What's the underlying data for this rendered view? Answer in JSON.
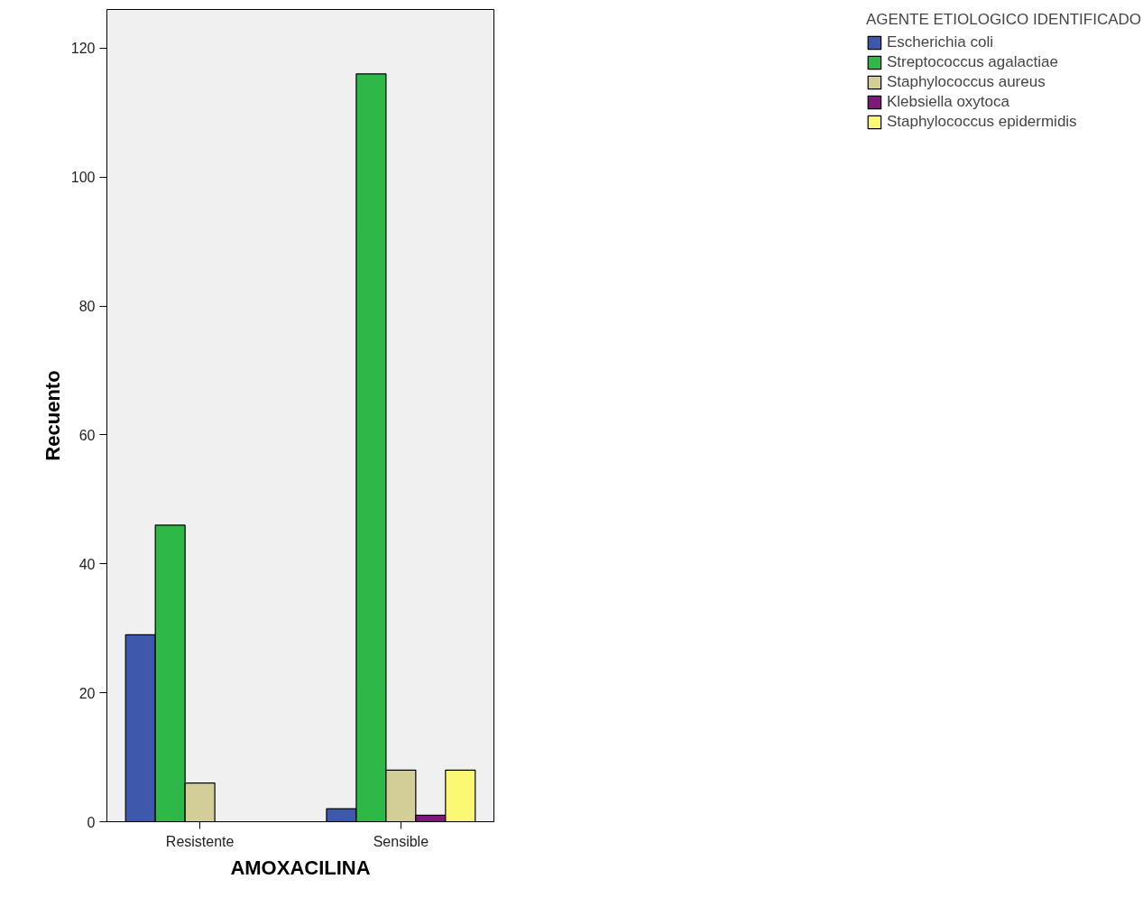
{
  "chart_data": {
    "type": "bar",
    "xlabel": "AMOXACILINA",
    "ylabel": "Recuento",
    "legend_title": "AGENTE ETIOLOGICO IDENTIFICADO",
    "categories": [
      "Resistente",
      "Sensible"
    ],
    "series": [
      {
        "name": "Escherichia coli",
        "color": "#3e58ac",
        "values": [
          29,
          2
        ]
      },
      {
        "name": "Streptococcus agalactiae",
        "color": "#2eb848",
        "values": [
          46,
          116
        ]
      },
      {
        "name": "Staphylococcus aureus",
        "color": "#d3ce97",
        "values": [
          6,
          8
        ]
      },
      {
        "name": "Klebsiella oxytoca",
        "color": "#7b1a7a",
        "values": [
          null,
          1
        ]
      },
      {
        "name": "Staphylococcus epidermidis",
        "color": "#fbf873",
        "values": [
          null,
          8
        ]
      }
    ],
    "ylim": [
      0,
      126
    ],
    "yticks": [
      0,
      20,
      40,
      60,
      80,
      100,
      120
    ],
    "grid": false,
    "legend": "top right"
  }
}
